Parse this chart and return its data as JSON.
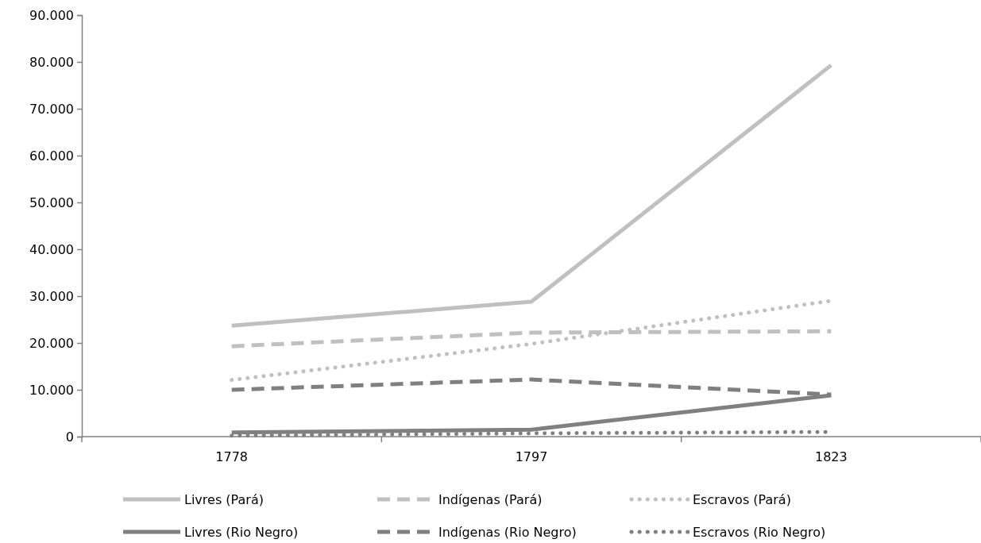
{
  "chart_data": {
    "type": "line",
    "categories": [
      "1778",
      "1797",
      "1823"
    ],
    "ylim": [
      0,
      90000
    ],
    "yticks": [
      {
        "value": 0,
        "label": "0"
      },
      {
        "value": 10000,
        "label": "10.000"
      },
      {
        "value": 20000,
        "label": "20.000"
      },
      {
        "value": 30000,
        "label": "30.000"
      },
      {
        "value": 40000,
        "label": "40.000"
      },
      {
        "value": 50000,
        "label": "50.000"
      },
      {
        "value": 60000,
        "label": "60.000"
      },
      {
        "value": 70000,
        "label": "70.000"
      },
      {
        "value": 80000,
        "label": "80.000"
      },
      {
        "value": 90000,
        "label": "90.000"
      }
    ],
    "grid": false,
    "legend": "bottom",
    "marker": "none",
    "series": [
      {
        "name": "Livres (Pará)",
        "color": "#c0c0c0",
        "line_style": "solid",
        "values": [
          23700,
          28800,
          79300
        ]
      },
      {
        "name": "Indígenas (Pará)",
        "color": "#c0c0c0",
        "line_style": "dashed",
        "values": [
          19300,
          22200,
          22500
        ]
      },
      {
        "name": "Escravos (Pará)",
        "color": "#c0c0c0",
        "line_style": "dotted",
        "values": [
          12100,
          19800,
          29000
        ]
      },
      {
        "name": "Livres (Rio Negro)",
        "color": "#808080",
        "line_style": "solid",
        "values": [
          900,
          1500,
          8800
        ]
      },
      {
        "name": "Indígenas (Rio Negro)",
        "color": "#808080",
        "line_style": "dashed",
        "values": [
          10000,
          12200,
          9000
        ]
      },
      {
        "name": "Escravos (Rio Negro)",
        "color": "#808080",
        "line_style": "dotted",
        "values": [
          200,
          700,
          1000
        ]
      }
    ]
  }
}
